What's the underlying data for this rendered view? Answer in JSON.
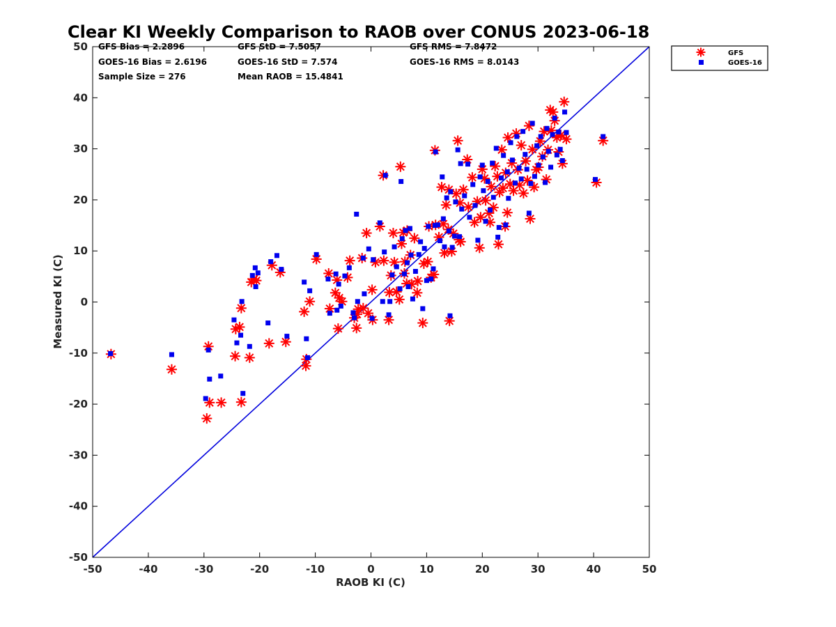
{
  "chart_data": {
    "type": "scatter",
    "title": "Clear KI Weekly Comparison to RAOB over CONUS 2023-06-18",
    "xlabel": "RAOB KI (C)",
    "ylabel": "Measured KI (C)",
    "xlim": [
      -50,
      50
    ],
    "ylim": [
      -50,
      50
    ],
    "xticks": [
      -50,
      -40,
      -30,
      -20,
      -10,
      0,
      10,
      20,
      30,
      40,
      50
    ],
    "yticks": [
      -50,
      -40,
      -30,
      -20,
      -10,
      0,
      10,
      20,
      30,
      40,
      50
    ],
    "reference_line": {
      "from": [
        -50,
        -50
      ],
      "to": [
        50,
        50
      ],
      "color": "#0000dd"
    },
    "stats": [
      [
        "GFS Bias = 2.2896",
        "GFS StD = 7.5057",
        "GFS RMS = 7.8472"
      ],
      [
        "GOES-16 Bias = 2.6196",
        "GOES-16 StD = 7.574",
        "GOES-16 RMS = 8.0143"
      ],
      [
        "Sample Size = 276",
        "Mean RAOB = 15.4841",
        ""
      ]
    ],
    "legend_position": "top-right outside",
    "series": [
      {
        "name": "GFS",
        "marker": "asterisk",
        "color": "#ff0000",
        "points": [
          [
            -46.7,
            -10.2
          ],
          [
            -35.8,
            -13.2
          ],
          [
            -29.5,
            -22.8
          ],
          [
            -29.2,
            -8.7
          ],
          [
            -29.0,
            -19.7
          ],
          [
            -26.9,
            -19.7
          ],
          [
            -24.4,
            -10.6
          ],
          [
            -24.3,
            -5.3
          ],
          [
            -23.6,
            -4.9
          ],
          [
            -23.3,
            -19.6
          ],
          [
            -23.3,
            -1.2
          ],
          [
            -21.8,
            -10.9
          ],
          [
            -21.5,
            3.9
          ],
          [
            -21.0,
            4.5
          ],
          [
            -20.6,
            4.2
          ],
          [
            -18.3,
            -8.1
          ],
          [
            -17.8,
            7.2
          ],
          [
            -16.3,
            5.8
          ],
          [
            -15.3,
            -7.8
          ],
          [
            -12.0,
            -1.9
          ],
          [
            -11.7,
            -12.5
          ],
          [
            -11.6,
            -11.2
          ],
          [
            -11.0,
            0.1
          ],
          [
            -9.8,
            8.4
          ],
          [
            -7.6,
            5.6
          ],
          [
            -7.4,
            -1.3
          ],
          [
            -6.4,
            1.8
          ],
          [
            -6.1,
            4.3
          ],
          [
            -5.9,
            -5.2
          ],
          [
            -5.7,
            0.8
          ],
          [
            -5.2,
            0.1
          ],
          [
            -4.2,
            4.8
          ],
          [
            -3.8,
            8.1
          ],
          [
            -3.0,
            -3.1
          ],
          [
            -2.6,
            -5.1
          ],
          [
            -2.5,
            -2.4
          ],
          [
            -2.3,
            -1.4
          ],
          [
            -1.6,
            8.6
          ],
          [
            -1.4,
            -1.2
          ],
          [
            -0.8,
            13.5
          ],
          [
            -0.5,
            -2.2
          ],
          [
            0.2,
            2.4
          ],
          [
            0.3,
            -3.5
          ],
          [
            0.8,
            7.8
          ],
          [
            1.6,
            14.8
          ],
          [
            2.2,
            24.8
          ],
          [
            2.3,
            8.1
          ],
          [
            3.2,
            -3.5
          ],
          [
            3.3,
            1.9
          ],
          [
            3.6,
            5.2
          ],
          [
            4.0,
            13.5
          ],
          [
            4.2,
            7.8
          ],
          [
            4.6,
            2.0
          ],
          [
            5.1,
            0.5
          ],
          [
            5.3,
            26.5
          ],
          [
            5.5,
            11.4
          ],
          [
            5.8,
            13.6
          ],
          [
            6.0,
            5.6
          ],
          [
            6.1,
            7.9
          ],
          [
            6.4,
            3.6
          ],
          [
            6.5,
            14.0
          ],
          [
            7.1,
            9.2
          ],
          [
            7.3,
            3.5
          ],
          [
            7.8,
            12.5
          ],
          [
            8.3,
            1.8
          ],
          [
            8.4,
            4.1
          ],
          [
            9.3,
            -4.1
          ],
          [
            9.5,
            7.5
          ],
          [
            10.2,
            7.9
          ],
          [
            10.4,
            14.8
          ],
          [
            10.8,
            4.8
          ],
          [
            11.3,
            5.4
          ],
          [
            11.5,
            29.7
          ],
          [
            11.6,
            15.1
          ],
          [
            12.2,
            12.7
          ],
          [
            12.7,
            22.5
          ],
          [
            13.0,
            15.3
          ],
          [
            13.2,
            9.6
          ],
          [
            13.5,
            19.0
          ],
          [
            13.9,
            14.2
          ],
          [
            14.0,
            22.0
          ],
          [
            14.1,
            -3.7
          ],
          [
            14.5,
            9.9
          ],
          [
            14.8,
            13.4
          ],
          [
            15.3,
            21.2
          ],
          [
            15.6,
            31.6
          ],
          [
            15.8,
            12.2
          ],
          [
            16.0,
            19.4
          ],
          [
            16.1,
            11.8
          ],
          [
            16.6,
            22.0
          ],
          [
            17.3,
            27.9
          ],
          [
            17.5,
            18.6
          ],
          [
            18.2,
            24.4
          ],
          [
            18.6,
            15.6
          ],
          [
            19.1,
            19.7
          ],
          [
            19.5,
            10.6
          ],
          [
            19.7,
            16.6
          ],
          [
            20.0,
            26.0
          ],
          [
            20.4,
            24.2
          ],
          [
            20.6,
            19.9
          ],
          [
            21.2,
            17.4
          ],
          [
            21.4,
            15.6
          ],
          [
            21.6,
            22.6
          ],
          [
            22.0,
            18.5
          ],
          [
            22.3,
            26.6
          ],
          [
            22.7,
            24.6
          ],
          [
            22.9,
            11.3
          ],
          [
            23.1,
            21.5
          ],
          [
            23.5,
            29.8
          ],
          [
            23.7,
            22.3
          ],
          [
            24.1,
            14.8
          ],
          [
            24.2,
            25.3
          ],
          [
            24.5,
            17.5
          ],
          [
            24.6,
            32.2
          ],
          [
            25.0,
            23.1
          ],
          [
            25.3,
            27.2
          ],
          [
            25.6,
            21.8
          ],
          [
            26.1,
            33.0
          ],
          [
            26.4,
            25.9
          ],
          [
            26.7,
            22.9
          ],
          [
            27.0,
            30.7
          ],
          [
            27.4,
            21.3
          ],
          [
            27.8,
            27.6
          ],
          [
            28.1,
            23.8
          ],
          [
            28.4,
            34.5
          ],
          [
            28.6,
            16.3
          ],
          [
            29.0,
            29.9
          ],
          [
            29.3,
            22.5
          ],
          [
            29.7,
            25.9
          ],
          [
            30.1,
            26.4
          ],
          [
            30.4,
            31.5
          ],
          [
            30.8,
            28.5
          ],
          [
            31.1,
            33.4
          ],
          [
            31.5,
            24.0
          ],
          [
            31.8,
            29.8
          ],
          [
            32.2,
            37.6
          ],
          [
            32.4,
            33.6
          ],
          [
            32.7,
            37.2
          ],
          [
            33.0,
            35.5
          ],
          [
            33.4,
            32.2
          ],
          [
            33.7,
            29.4
          ],
          [
            34.1,
            32.7
          ],
          [
            34.4,
            27.1
          ],
          [
            34.7,
            39.2
          ],
          [
            35.1,
            31.9
          ],
          [
            40.5,
            23.4
          ],
          [
            41.7,
            31.6
          ]
        ]
      },
      {
        "name": "GOES-16",
        "marker": "square",
        "color": "#0000ee",
        "points": [
          [
            -46.8,
            -10.1
          ],
          [
            -35.8,
            -10.3
          ],
          [
            -29.7,
            -18.9
          ],
          [
            -29.2,
            -9.4
          ],
          [
            -29.0,
            -15.1
          ],
          [
            -27.0,
            -14.5
          ],
          [
            -24.6,
            -3.5
          ],
          [
            -24.1,
            -8.0
          ],
          [
            -23.4,
            -6.5
          ],
          [
            -23.2,
            0.1
          ],
          [
            -23.0,
            -17.9
          ],
          [
            -21.8,
            -8.7
          ],
          [
            -21.3,
            5.2
          ],
          [
            -20.8,
            6.7
          ],
          [
            -20.7,
            3.0
          ],
          [
            -20.3,
            5.7
          ],
          [
            -18.5,
            -4.1
          ],
          [
            -18.0,
            7.9
          ],
          [
            -16.9,
            9.1
          ],
          [
            -16.1,
            6.4
          ],
          [
            -15.1,
            -6.7
          ],
          [
            -12.0,
            3.9
          ],
          [
            -11.6,
            -7.2
          ],
          [
            -11.4,
            -10.9
          ],
          [
            -11.0,
            2.2
          ],
          [
            -9.8,
            9.3
          ],
          [
            -7.7,
            4.5
          ],
          [
            -7.4,
            -2.2
          ],
          [
            -6.3,
            5.5
          ],
          [
            -6.1,
            -1.6
          ],
          [
            -5.8,
            3.5
          ],
          [
            -5.4,
            -0.8
          ],
          [
            -4.7,
            5.1
          ],
          [
            -3.9,
            6.7
          ],
          [
            -3.2,
            -2.1
          ],
          [
            -3.0,
            -3.1
          ],
          [
            -2.6,
            17.2
          ],
          [
            -2.4,
            0.1
          ],
          [
            -1.4,
            8.6
          ],
          [
            -1.2,
            1.6
          ],
          [
            -0.4,
            10.4
          ],
          [
            0.2,
            -3.2
          ],
          [
            0.4,
            8.3
          ],
          [
            1.6,
            15.5
          ],
          [
            2.1,
            0.1
          ],
          [
            2.4,
            9.8
          ],
          [
            2.6,
            24.8
          ],
          [
            3.2,
            -2.5
          ],
          [
            3.4,
            0.1
          ],
          [
            3.8,
            5.3
          ],
          [
            4.2,
            10.8
          ],
          [
            4.6,
            6.9
          ],
          [
            5.2,
            2.6
          ],
          [
            5.4,
            23.6
          ],
          [
            5.6,
            12.4
          ],
          [
            6.0,
            5.5
          ],
          [
            6.2,
            14.0
          ],
          [
            6.5,
            7.7
          ],
          [
            6.7,
            3.0
          ],
          [
            7.0,
            14.4
          ],
          [
            7.2,
            9.2
          ],
          [
            7.5,
            0.6
          ],
          [
            8.0,
            6.0
          ],
          [
            8.6,
            9.3
          ],
          [
            8.9,
            11.8
          ],
          [
            9.3,
            -1.3
          ],
          [
            9.6,
            10.5
          ],
          [
            10.0,
            4.2
          ],
          [
            10.3,
            14.8
          ],
          [
            10.8,
            4.5
          ],
          [
            11.2,
            6.5
          ],
          [
            11.5,
            15.0
          ],
          [
            11.6,
            29.4
          ],
          [
            12.0,
            15.1
          ],
          [
            12.4,
            12.0
          ],
          [
            12.8,
            24.5
          ],
          [
            13.0,
            16.3
          ],
          [
            13.2,
            10.8
          ],
          [
            13.6,
            20.4
          ],
          [
            14.0,
            13.9
          ],
          [
            14.2,
            -2.7
          ],
          [
            14.3,
            21.6
          ],
          [
            14.6,
            10.7
          ],
          [
            15.0,
            12.9
          ],
          [
            15.2,
            19.6
          ],
          [
            15.6,
            29.8
          ],
          [
            15.9,
            12.8
          ],
          [
            16.1,
            27.1
          ],
          [
            16.3,
            18.2
          ],
          [
            16.8,
            20.8
          ],
          [
            17.4,
            27.0
          ],
          [
            17.7,
            16.6
          ],
          [
            18.3,
            23.0
          ],
          [
            18.7,
            18.9
          ],
          [
            19.2,
            12.1
          ],
          [
            19.6,
            24.5
          ],
          [
            20.0,
            26.8
          ],
          [
            20.2,
            21.8
          ],
          [
            20.6,
            15.8
          ],
          [
            21.0,
            23.6
          ],
          [
            21.4,
            18.0
          ],
          [
            21.8,
            27.2
          ],
          [
            22.0,
            20.5
          ],
          [
            22.5,
            30.1
          ],
          [
            22.8,
            12.7
          ],
          [
            23.0,
            14.6
          ],
          [
            23.4,
            24.3
          ],
          [
            23.8,
            28.7
          ],
          [
            24.2,
            15.1
          ],
          [
            24.5,
            25.5
          ],
          [
            24.7,
            20.3
          ],
          [
            25.1,
            31.2
          ],
          [
            25.4,
            27.8
          ],
          [
            25.9,
            23.3
          ],
          [
            26.2,
            32.4
          ],
          [
            26.6,
            26.2
          ],
          [
            27.0,
            24.1
          ],
          [
            27.3,
            33.4
          ],
          [
            27.7,
            28.9
          ],
          [
            28.0,
            26.0
          ],
          [
            28.4,
            17.4
          ],
          [
            28.7,
            23.2
          ],
          [
            29.0,
            35.0
          ],
          [
            29.4,
            24.6
          ],
          [
            29.8,
            30.6
          ],
          [
            30.1,
            26.8
          ],
          [
            30.5,
            32.4
          ],
          [
            30.9,
            28.4
          ],
          [
            31.3,
            23.4
          ],
          [
            31.6,
            34.0
          ],
          [
            31.9,
            29.5
          ],
          [
            32.3,
            26.4
          ],
          [
            32.6,
            32.8
          ],
          [
            33.0,
            36.0
          ],
          [
            33.4,
            28.8
          ],
          [
            33.7,
            33.3
          ],
          [
            34.0,
            29.9
          ],
          [
            34.4,
            27.7
          ],
          [
            34.8,
            37.2
          ],
          [
            35.1,
            33.2
          ],
          [
            40.3,
            24.0
          ],
          [
            41.7,
            32.4
          ]
        ]
      }
    ],
    "legend": [
      {
        "label": "GFS",
        "marker": "asterisk",
        "color": "#ff0000"
      },
      {
        "label": "GOES-16",
        "marker": "square",
        "color": "#0000ee"
      }
    ]
  }
}
